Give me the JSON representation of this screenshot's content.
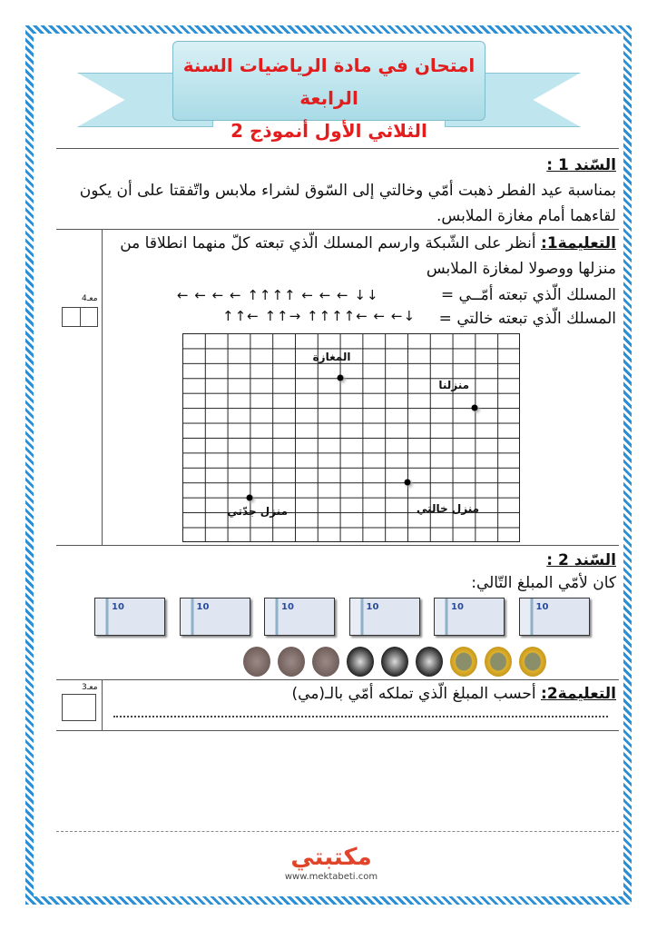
{
  "header": {
    "title_line1": "امتحان في مادة الرياضيات السنة الرابعة",
    "title_line2": "الثلاثي الأول أنموذج 2"
  },
  "sanad1": {
    "label": "السّند 1 :",
    "text": "بمناسبة عيد الفطر ذهبت أمّي وخالتي إلى السّوق لشراء ملابس واتّفقتا على أن يكون لقاءهما أمام مغازة الملابس."
  },
  "task1": {
    "label": "التعليمة1:",
    "text": "أنظر على الشّبكة وارسم المسلك الّذي تبعته كلّ منهما انطلاقا من منزلها ووصولا لمغازة الملابس",
    "mom_path_label": "المسلك الّذي تبعته أمّــي =",
    "mom_path": "← ← ← ← ↑↑↑↑ ← ← ← ↓↓",
    "aunt_path_label": "المسلك الّذي تبعته خالتي =",
    "aunt_path": "↑↑← ↑↑→ ↑↑↑↑← ← ←↓",
    "score_label": "معـ4",
    "grid": {
      "columns": 15,
      "rows": 14,
      "points": [
        {
          "label": "المغازة",
          "col": 7,
          "row": 3
        },
        {
          "label": "منزلنا",
          "col": 13,
          "row": 5
        },
        {
          "label": "منزل خالتي",
          "col": 10,
          "row": 10
        },
        {
          "label": "منزل جدّتي",
          "col": 3,
          "row": 11
        }
      ]
    }
  },
  "sanad2": {
    "label": "السّند 2 :",
    "text": "كان لأمّي المبلغ التّالي:",
    "bills": [
      "10",
      "10",
      "10",
      "10",
      "10",
      "10"
    ],
    "coins": {
      "bronze": 3,
      "silver": 3,
      "gold": 3
    }
  },
  "task2": {
    "label": "التعليمة2:",
    "text": "أحسب المبلغ الّذي تملكه أمّي بالـ(مي)",
    "score_label": "معـ3"
  },
  "footer": {
    "logo_text": "مكتبتي",
    "url": "www.mektabeti.com"
  },
  "colors": {
    "title": "#e31d1d",
    "frame": "#2a8fd6",
    "banner": "#bfe6ee"
  }
}
